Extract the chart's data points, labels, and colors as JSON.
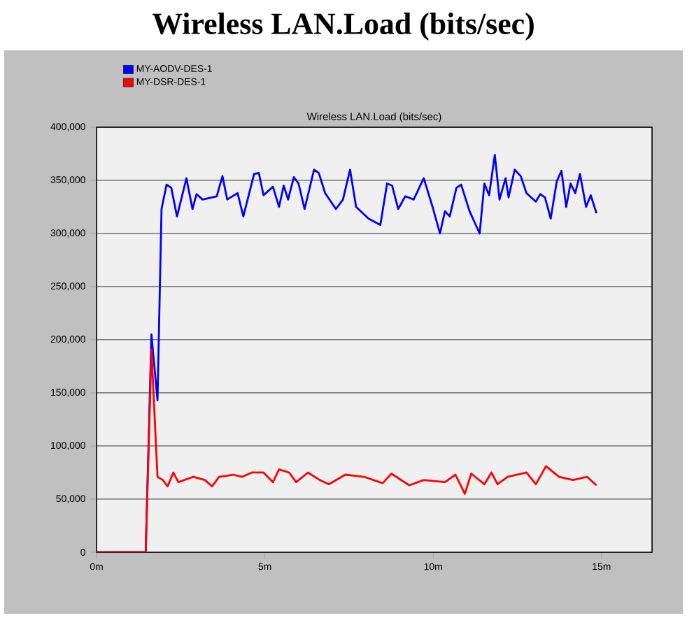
{
  "chart_data": {
    "type": "line",
    "title": "Wireless LAN.Load (bits/sec)",
    "subtitle": "Wireless LAN.Load (bits/sec)",
    "xlim": [
      0,
      16.5
    ],
    "xticks": [
      {
        "value": 0,
        "label": "0m"
      },
      {
        "value": 5,
        "label": "5m"
      },
      {
        "value": 10,
        "label": "10m"
      },
      {
        "value": 15,
        "label": "15m"
      }
    ],
    "ylim": [
      0,
      400000
    ],
    "yticks": [
      {
        "value": 0,
        "label": "0"
      },
      {
        "value": 50000,
        "label": "50,000"
      },
      {
        "value": 100000,
        "label": "100,000"
      },
      {
        "value": 150000,
        "label": "150,000"
      },
      {
        "value": 200000,
        "label": "200,000"
      },
      {
        "value": 250000,
        "label": "250,000"
      },
      {
        "value": 300000,
        "label": "300,000"
      },
      {
        "value": 350000,
        "label": "350,000"
      },
      {
        "value": 400000,
        "label": "400,000"
      }
    ],
    "grid": "y",
    "legend": "top left",
    "marker": "none",
    "line_style": "solid",
    "series": [
      {
        "name": "MY-AODV-DES-1",
        "color": "#0000ff",
        "x": [
          0,
          1.46,
          1.63,
          1.81,
          1.93,
          2.08,
          2.22,
          2.39,
          2.67,
          2.85,
          2.97,
          3.15,
          3.57,
          3.74,
          3.88,
          4.19,
          4.36,
          4.68,
          4.82,
          4.96,
          5.24,
          5.42,
          5.56,
          5.69,
          5.86,
          6.0,
          6.18,
          6.46,
          6.6,
          6.79,
          7.11,
          7.32,
          7.53,
          7.71,
          8.08,
          8.43,
          8.63,
          8.78,
          8.96,
          9.17,
          9.42,
          9.72,
          10.0,
          10.2,
          10.35,
          10.49,
          10.69,
          10.83,
          11.08,
          11.38,
          11.52,
          11.66,
          11.83,
          11.97,
          12.15,
          12.24,
          12.42,
          12.6,
          12.77,
          13.05,
          13.18,
          13.32,
          13.49,
          13.67,
          13.81,
          13.95,
          14.08,
          14.22,
          14.36,
          14.54,
          14.68,
          14.85
        ],
        "values": [
          0,
          0,
          205000,
          143000,
          323000,
          346000,
          343000,
          316000,
          352000,
          323000,
          337000,
          332000,
          335000,
          354000,
          332000,
          338000,
          316000,
          356000,
          357000,
          336000,
          344000,
          325000,
          345000,
          332000,
          353000,
          347000,
          323000,
          360000,
          357000,
          338000,
          323000,
          332000,
          360000,
          325000,
          314000,
          308000,
          347000,
          345000,
          323000,
          335000,
          332000,
          352000,
          323000,
          300000,
          321000,
          316000,
          343000,
          346000,
          321000,
          300000,
          347000,
          336000,
          374000,
          332000,
          352000,
          334000,
          360000,
          354000,
          338000,
          330000,
          337000,
          334000,
          314000,
          349000,
          359000,
          325000,
          347000,
          338000,
          356000,
          325000,
          336000,
          319000
        ]
      },
      {
        "name": "MY-DSR-DES-1",
        "color": "#ff0000",
        "x": [
          0,
          1.46,
          1.63,
          1.81,
          1.97,
          2.11,
          2.28,
          2.43,
          2.88,
          3.22,
          3.43,
          3.64,
          4.06,
          4.33,
          4.61,
          4.96,
          5.24,
          5.42,
          5.72,
          5.93,
          6.28,
          6.63,
          6.9,
          7.39,
          7.94,
          8.5,
          8.76,
          9.29,
          9.72,
          10.35,
          10.66,
          10.94,
          11.13,
          11.52,
          11.73,
          11.91,
          12.21,
          12.77,
          13.05,
          13.35,
          13.74,
          14.15,
          14.57,
          14.85
        ],
        "values": [
          0,
          0,
          191000,
          71000,
          68000,
          62000,
          75000,
          66000,
          71000,
          68000,
          62000,
          71000,
          73000,
          71000,
          75000,
          75000,
          66000,
          78000,
          75000,
          66000,
          75000,
          68000,
          64000,
          73000,
          71000,
          65000,
          74000,
          63000,
          68000,
          66000,
          73000,
          55000,
          74000,
          64000,
          75000,
          64000,
          71000,
          75000,
          64000,
          81000,
          71000,
          68000,
          71000,
          63000
        ]
      }
    ]
  }
}
